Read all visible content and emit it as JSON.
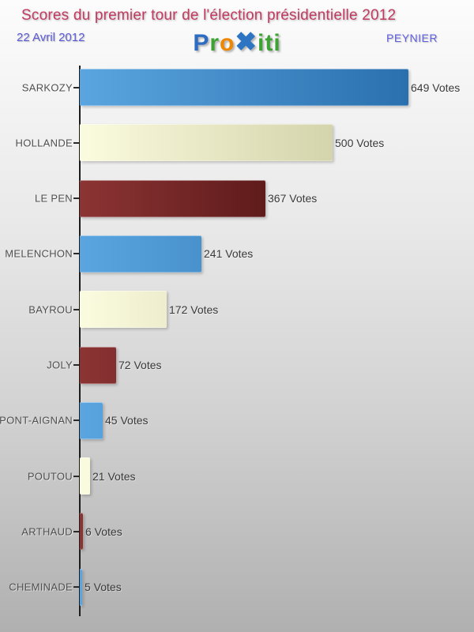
{
  "header": {
    "title": "Scores du premier tour de l'élection présidentielle 2012",
    "date": "22 Avril 2012",
    "location": "PEYNIER",
    "logo": {
      "segments": [
        {
          "text": "P",
          "color": "#2d6cc3"
        },
        {
          "text": "r",
          "color": "#3da233"
        },
        {
          "text": "o",
          "color": "#ef8600"
        },
        {
          "text": "✖",
          "color": "#2d74c3"
        },
        {
          "text": "iti",
          "color": "#3da233"
        }
      ]
    }
  },
  "chart_data": {
    "type": "bar",
    "orientation": "horizontal",
    "title": "Scores du premier tour de l'élection présidentielle 2012",
    "subtitle": "22 Avril 2012",
    "location": "PEYNIER",
    "categories": [
      "SARKOZY",
      "HOLLANDE",
      "LE PEN",
      "MELENCHON",
      "BAYROU",
      "JOLY",
      "DUPONT-AIGNAN",
      "POUTOU",
      "ARTHAUD",
      "CHEMINADE"
    ],
    "values": [
      649,
      500,
      367,
      241,
      172,
      72,
      45,
      21,
      6,
      5
    ],
    "value_label_suffix": " Votes",
    "max_value": 649,
    "grid": false,
    "legend": "none",
    "bar_palette_cycle": [
      {
        "name": "blue",
        "gradient_from": "#5aa5e0",
        "gradient_to": "#2a70ae"
      },
      {
        "name": "cream",
        "gradient_from": "#fbfbdf",
        "gradient_to": "#c8c99c"
      },
      {
        "name": "darkred",
        "gradient_from": "#8c3434",
        "gradient_to": "#3d0808"
      }
    ]
  },
  "colors": {
    "title": "#c23a60",
    "date": "#5b5bd8",
    "location": "#6363e0",
    "axis": "#1c1c1c",
    "category_label": "#4f4f4f",
    "value_label": "#3a3a3a",
    "background_top": "#fcfcfc",
    "background_bottom": "#b0b0b0"
  }
}
